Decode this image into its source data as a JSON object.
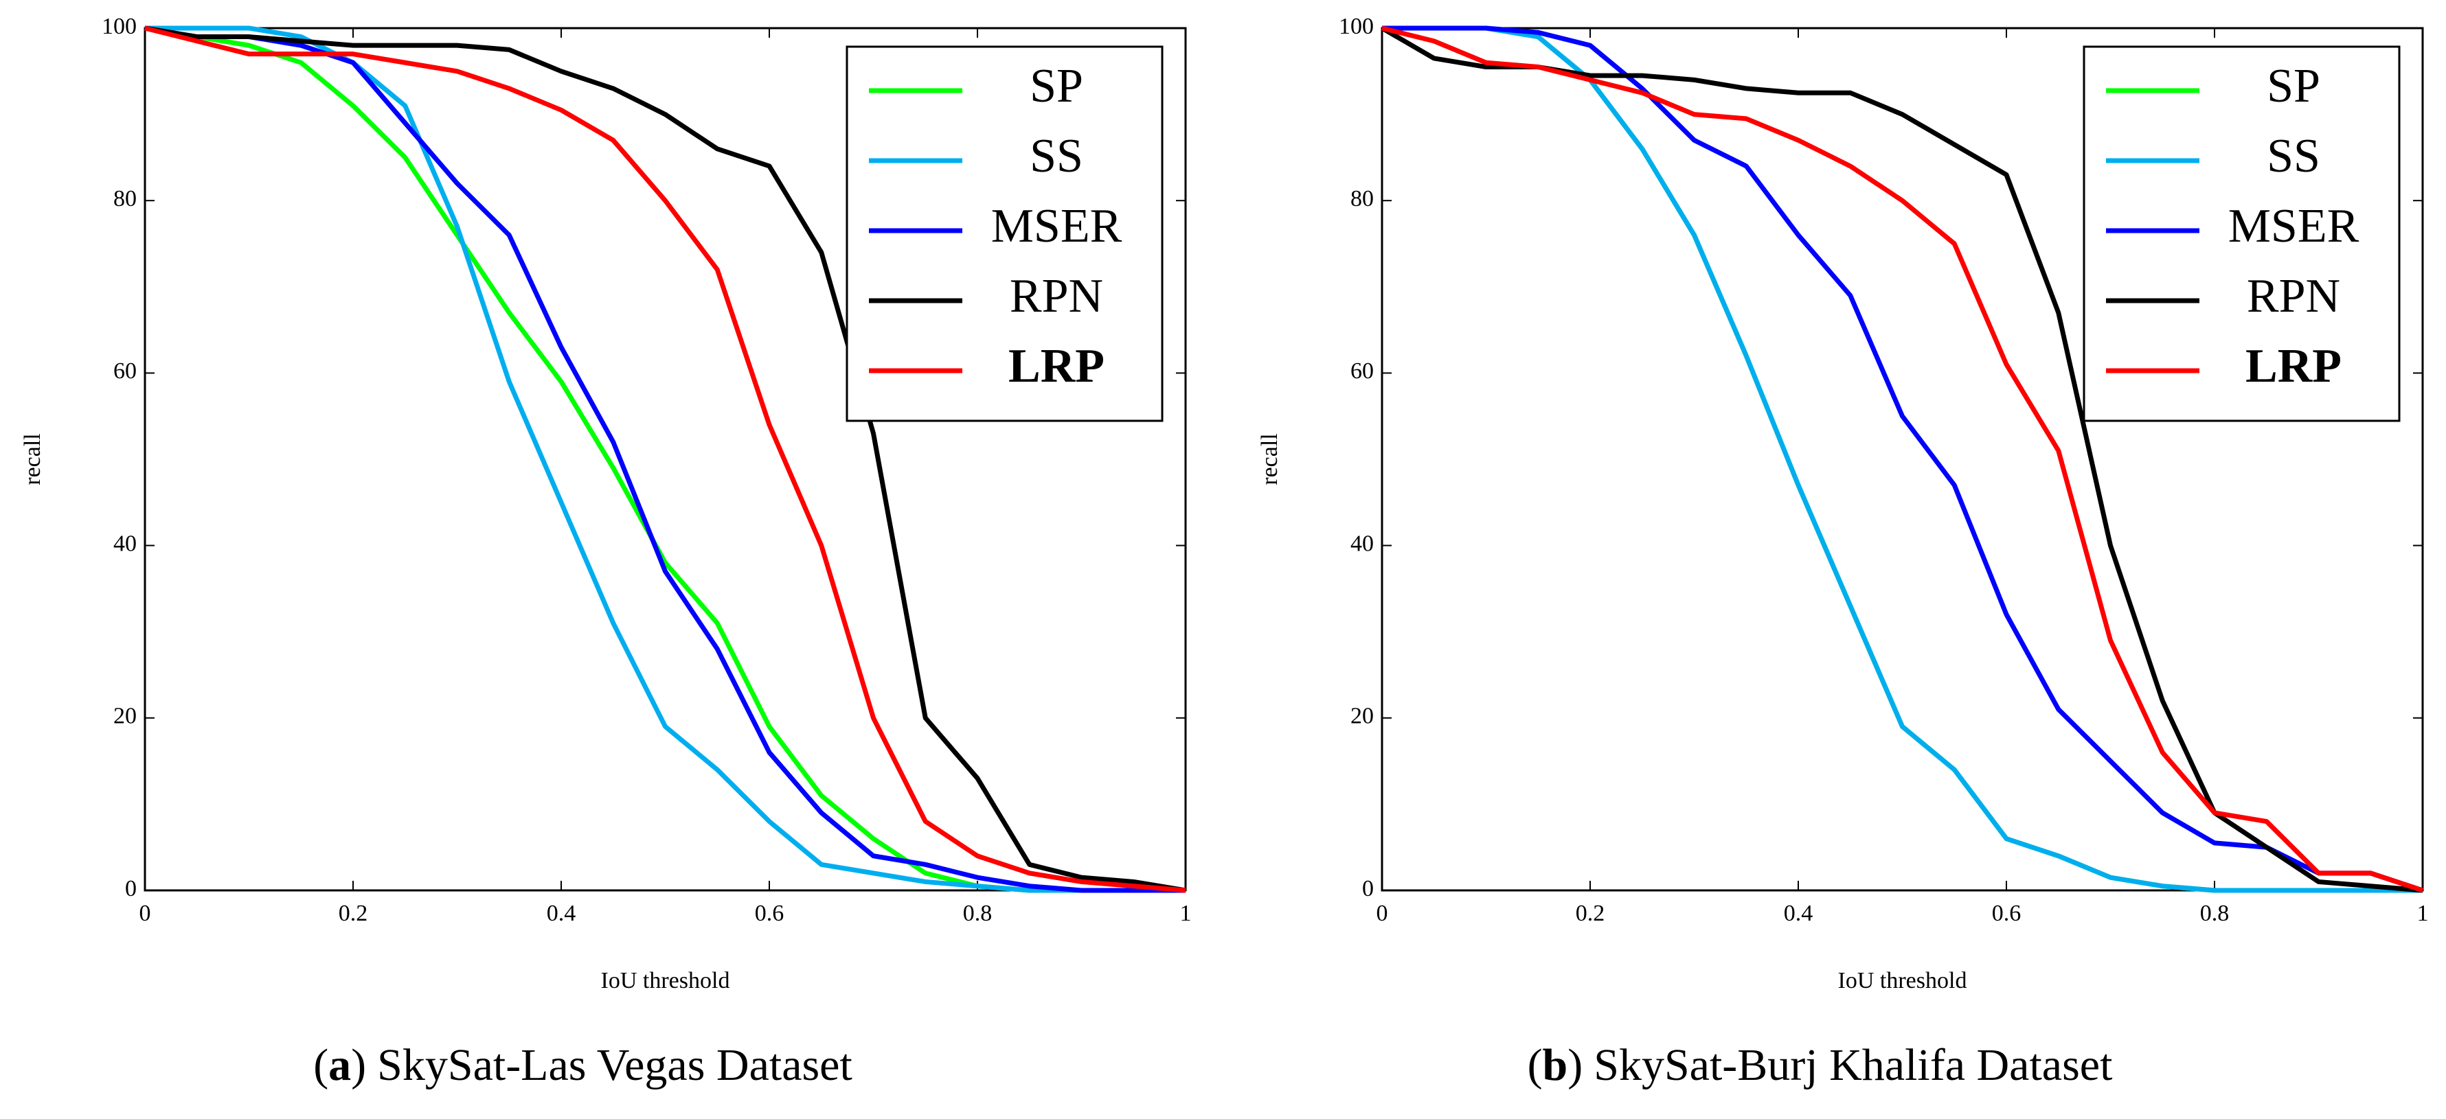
{
  "chart_data": [
    {
      "type": "line",
      "xlabel": "IoU threshold",
      "ylabel": "recall",
      "caption": {
        "open": "(",
        "label": "a",
        "close": ")",
        "text": "SkySat-Las Vegas Dataset"
      },
      "x": [
        0,
        0.05,
        0.1,
        0.15,
        0.2,
        0.25,
        0.3,
        0.35,
        0.4,
        0.45,
        0.5,
        0.55,
        0.6,
        0.65,
        0.7,
        0.75,
        0.8,
        0.85,
        0.9,
        0.95,
        1
      ],
      "xlim": [
        0,
        1
      ],
      "ylim": [
        0,
        100
      ],
      "xticks": [
        0,
        0.2,
        0.4,
        0.6,
        0.8,
        1
      ],
      "yticks": [
        0,
        20,
        40,
        60,
        80,
        100
      ],
      "legend": "upper right",
      "series": [
        {
          "name": "SP",
          "color": "#00ff00",
          "values": [
            100,
            99,
            98,
            96,
            91,
            85,
            76,
            67,
            59,
            49,
            38,
            31,
            19,
            11,
            6,
            2,
            0.5,
            0,
            0,
            0,
            0
          ]
        },
        {
          "name": "SS",
          "color": "#00aeef",
          "values": [
            100,
            100,
            100,
            99,
            96,
            91,
            77,
            59,
            45,
            31,
            19,
            14,
            8,
            3,
            2,
            1,
            0.5,
            0,
            0,
            0,
            0
          ]
        },
        {
          "name": "MSER",
          "color": "#0000ff",
          "values": [
            100,
            99,
            99,
            98,
            96,
            89,
            82,
            76,
            63,
            52,
            37,
            28,
            16,
            9,
            4,
            3,
            1.5,
            0.5,
            0,
            0,
            0
          ]
        },
        {
          "name": "RPN",
          "color": "#000000",
          "values": [
            100,
            99,
            99,
            98.5,
            98,
            98,
            98,
            97.5,
            95,
            93,
            90,
            86,
            84,
            74,
            53,
            20,
            13,
            3,
            1.5,
            1,
            0
          ]
        },
        {
          "name": "LRP",
          "color": "#ff0000",
          "bold": true,
          "values": [
            100,
            98.5,
            97,
            97,
            97,
            96,
            95,
            93,
            90.5,
            87,
            80,
            72,
            54,
            40,
            20,
            8,
            4,
            2,
            1,
            0.5,
            0
          ]
        }
      ]
    },
    {
      "type": "line",
      "xlabel": "IoU threshold",
      "ylabel": "recall",
      "caption": {
        "open": "(",
        "label": "b",
        "close": ")",
        "text": "SkySat-Burj Khalifa Dataset"
      },
      "x": [
        0,
        0.05,
        0.1,
        0.15,
        0.2,
        0.25,
        0.3,
        0.35,
        0.4,
        0.45,
        0.5,
        0.55,
        0.6,
        0.65,
        0.7,
        0.75,
        0.8,
        0.85,
        0.9,
        0.95,
        1
      ],
      "xlim": [
        0,
        1
      ],
      "ylim": [
        0,
        100
      ],
      "xticks": [
        0,
        0.2,
        0.4,
        0.6,
        0.8,
        1
      ],
      "yticks": [
        0,
        20,
        40,
        60,
        80,
        100
      ],
      "legend": "upper right",
      "series": [
        {
          "name": "SP",
          "color": "#00ff00",
          "values": [
            100,
            100,
            100,
            99,
            94,
            86,
            76,
            62,
            47,
            33,
            19,
            14,
            6,
            4,
            1.5,
            0.5,
            0,
            0,
            0,
            0,
            0
          ]
        },
        {
          "name": "SS",
          "color": "#00aeef",
          "values": [
            100,
            100,
            100,
            99,
            94,
            86,
            76,
            62,
            47,
            33,
            19,
            14,
            6,
            4,
            1.5,
            0.5,
            0,
            0,
            0,
            0,
            0
          ]
        },
        {
          "name": "MSER",
          "color": "#0000ff",
          "values": [
            100,
            100,
            100,
            99.5,
            98,
            93,
            87,
            84,
            76,
            69,
            55,
            47,
            32,
            21,
            15,
            9,
            5.5,
            5,
            2,
            2,
            0
          ]
        },
        {
          "name": "RPN",
          "color": "#000000",
          "values": [
            100,
            96.5,
            95.5,
            95.5,
            94.5,
            94.5,
            94,
            93,
            92.5,
            92.5,
            90,
            86.5,
            83,
            67,
            40,
            22,
            9,
            5,
            1,
            0.5,
            0
          ]
        },
        {
          "name": "LRP",
          "color": "#ff0000",
          "bold": true,
          "values": [
            100,
            98.5,
            96,
            95.5,
            94,
            92.5,
            90,
            89.5,
            87,
            84,
            80,
            75,
            61,
            51,
            29,
            16,
            9,
            8,
            2,
            2,
            0
          ]
        }
      ]
    }
  ]
}
